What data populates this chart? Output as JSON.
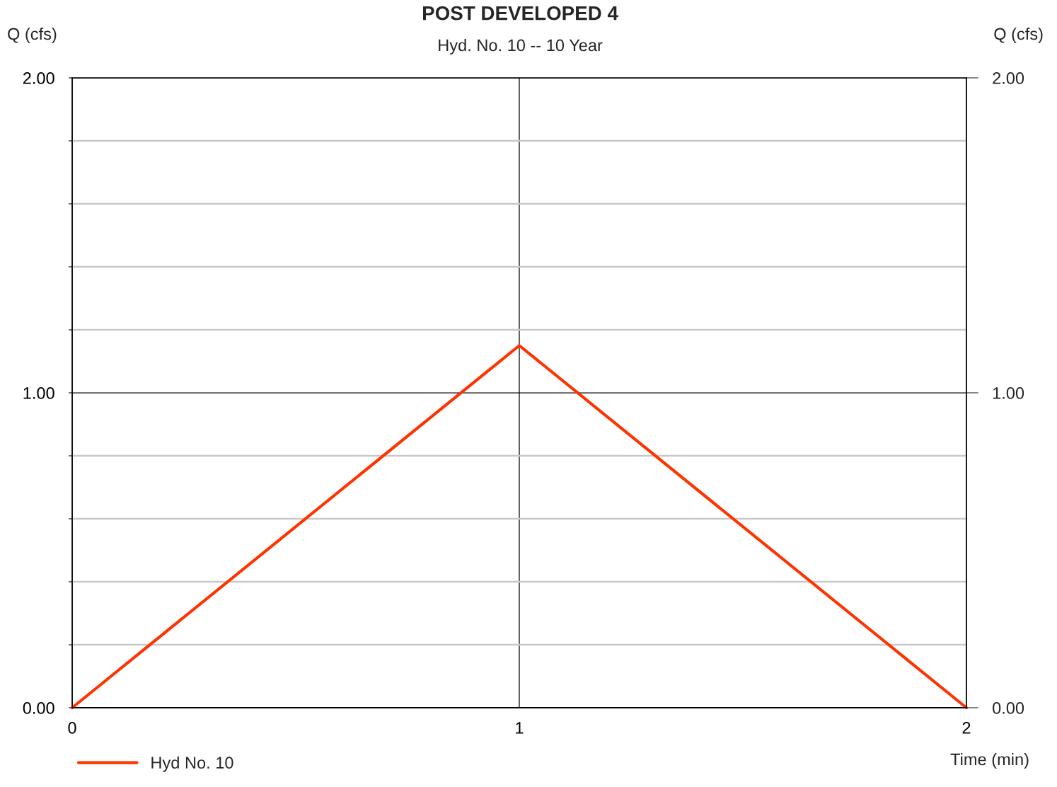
{
  "chart_data": {
    "type": "line",
    "title": "POST DEVELOPED 4",
    "subtitle": "Hyd. No. 10 -- 10 Year",
    "xlabel": "Time (min)",
    "ylabel": "Q (cfs)",
    "y2label": "Q (cfs)",
    "x": [
      0,
      1,
      2
    ],
    "series": [
      {
        "name": "Hyd No. 10",
        "color": "#ff3300",
        "values": [
          0,
          1.15,
          0
        ]
      }
    ],
    "xlim": [
      0,
      2
    ],
    "xticks": [
      0,
      1,
      2
    ],
    "ylim": [
      0,
      2
    ],
    "yticks": [
      {
        "value": 0,
        "label": "0.00"
      },
      {
        "value": 0.2,
        "label": null
      },
      {
        "value": 0.4,
        "label": null
      },
      {
        "value": 0.6,
        "label": null
      },
      {
        "value": 0.8,
        "label": null
      },
      {
        "value": 1,
        "label": "1.00"
      },
      {
        "value": 1.2,
        "label": null
      },
      {
        "value": 1.4,
        "label": null
      },
      {
        "value": 1.6,
        "label": null
      },
      {
        "value": 1.8,
        "label": null
      },
      {
        "value": 2,
        "label": "2.00"
      }
    ],
    "y2lim": [
      0,
      2
    ],
    "y2ticks": [
      {
        "value": 0,
        "label": "0.00"
      },
      {
        "value": 1,
        "label": "1.00"
      },
      {
        "value": 2,
        "label": "2.00"
      }
    ],
    "grid": true,
    "legend": "bottom left",
    "marker": "none",
    "line_style": "solid"
  }
}
